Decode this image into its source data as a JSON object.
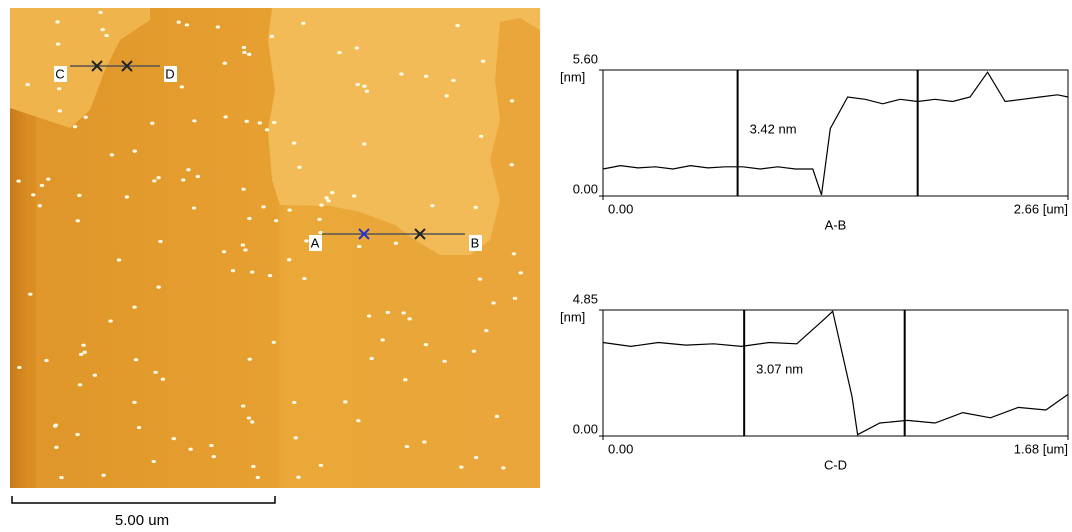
{
  "image": {
    "labels": {
      "a": "A",
      "b": "B",
      "c": "C",
      "d": "D"
    },
    "scale_bar": "5.00 um"
  },
  "chart_data": [
    {
      "type": "line",
      "xlabel": "A-B",
      "y_unit": "[nm]",
      "annotation": "3.42 nm",
      "color": "#000000",
      "x": [
        0,
        0.1,
        0.2,
        0.3,
        0.4,
        0.5,
        0.6,
        0.7,
        0.8,
        0.9,
        1.0,
        1.1,
        1.2,
        1.25,
        1.3,
        1.4,
        1.5,
        1.6,
        1.7,
        1.8,
        1.9,
        2.0,
        2.1,
        2.2,
        2.3,
        2.4,
        2.5,
        2.6,
        2.66
      ],
      "values": [
        1.2,
        1.35,
        1.25,
        1.3,
        1.2,
        1.35,
        1.25,
        1.3,
        1.3,
        1.2,
        1.3,
        1.2,
        1.2,
        0.05,
        3.0,
        4.4,
        4.3,
        4.1,
        4.3,
        4.2,
        4.3,
        4.2,
        4.4,
        5.5,
        4.2,
        4.3,
        4.4,
        4.5,
        4.4
      ],
      "cursors": [
        0.77,
        1.8
      ],
      "xlim": [
        0,
        2.66
      ],
      "ylim": [
        0,
        5.6
      ],
      "xticks": [
        {
          "value": 0,
          "label": "0.00"
        },
        {
          "value": 2.66,
          "label": "2.66 [um]"
        }
      ],
      "yticks": [
        {
          "value": 0,
          "label": "0.00"
        },
        {
          "value": 5.6,
          "label": "5.60"
        }
      ]
    },
    {
      "type": "line",
      "xlabel": "C-D",
      "y_unit": "[nm]",
      "annotation": "3.07 nm",
      "color": "#000000",
      "x": [
        0,
        0.1,
        0.2,
        0.3,
        0.4,
        0.5,
        0.6,
        0.7,
        0.8,
        0.83,
        0.9,
        0.92,
        1.0,
        1.1,
        1.2,
        1.3,
        1.4,
        1.5,
        1.6,
        1.68
      ],
      "values": [
        3.6,
        3.45,
        3.6,
        3.5,
        3.55,
        3.45,
        3.6,
        3.55,
        4.5,
        4.8,
        1.5,
        0.05,
        0.5,
        0.6,
        0.5,
        0.9,
        0.7,
        1.1,
        1.0,
        1.6
      ],
      "cursors": [
        0.51,
        1.09
      ],
      "xlim": [
        0,
        1.68
      ],
      "ylim": [
        0,
        4.85
      ],
      "xticks": [
        {
          "value": 0,
          "label": "0.00"
        },
        {
          "value": 1.68,
          "label": "1.68 [um]"
        }
      ],
      "yticks": [
        {
          "value": 0,
          "label": "0.00"
        },
        {
          "value": 4.85,
          "label": "4.85"
        }
      ]
    }
  ]
}
